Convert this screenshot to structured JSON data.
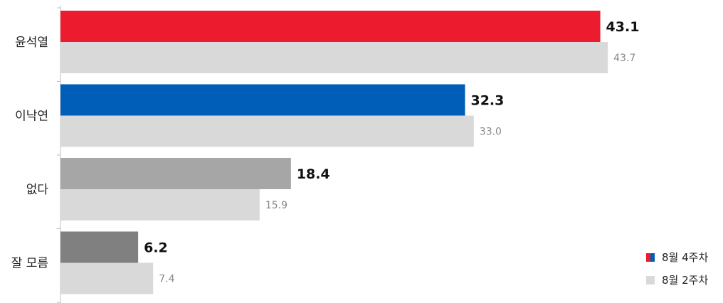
{
  "chart_data": {
    "type": "bar",
    "orientation": "horizontal",
    "categories": [
      "윤석열",
      "이낙연",
      "없다",
      "잘 모름"
    ],
    "series": [
      {
        "name": "8월 4주차",
        "values": [
          43.1,
          32.3,
          18.4,
          6.2
        ],
        "value_labels": [
          "43.1",
          "32.3",
          "18.4",
          "6.2"
        ],
        "colors": [
          "#ec1c2e",
          "#005eb8",
          "#a6a6a6",
          "#808080"
        ]
      },
      {
        "name": "8월 2주차",
        "values": [
          43.7,
          33.0,
          15.9,
          7.4
        ],
        "value_labels": [
          "43.7",
          "33.0",
          "15.9",
          "7.4"
        ],
        "colors": [
          "#d9d9d9",
          "#d9d9d9",
          "#d9d9d9",
          "#d9d9d9"
        ]
      }
    ],
    "xlim": [
      0,
      50
    ],
    "grid": false,
    "legend": {
      "placement": "bottom-right",
      "items": [
        {
          "label": "8월 4주차",
          "swatch": [
            "#ec1c2e",
            "#005eb8"
          ]
        },
        {
          "label": "8월 2주차",
          "swatch": [
            "#d9d9d9"
          ]
        }
      ]
    }
  }
}
